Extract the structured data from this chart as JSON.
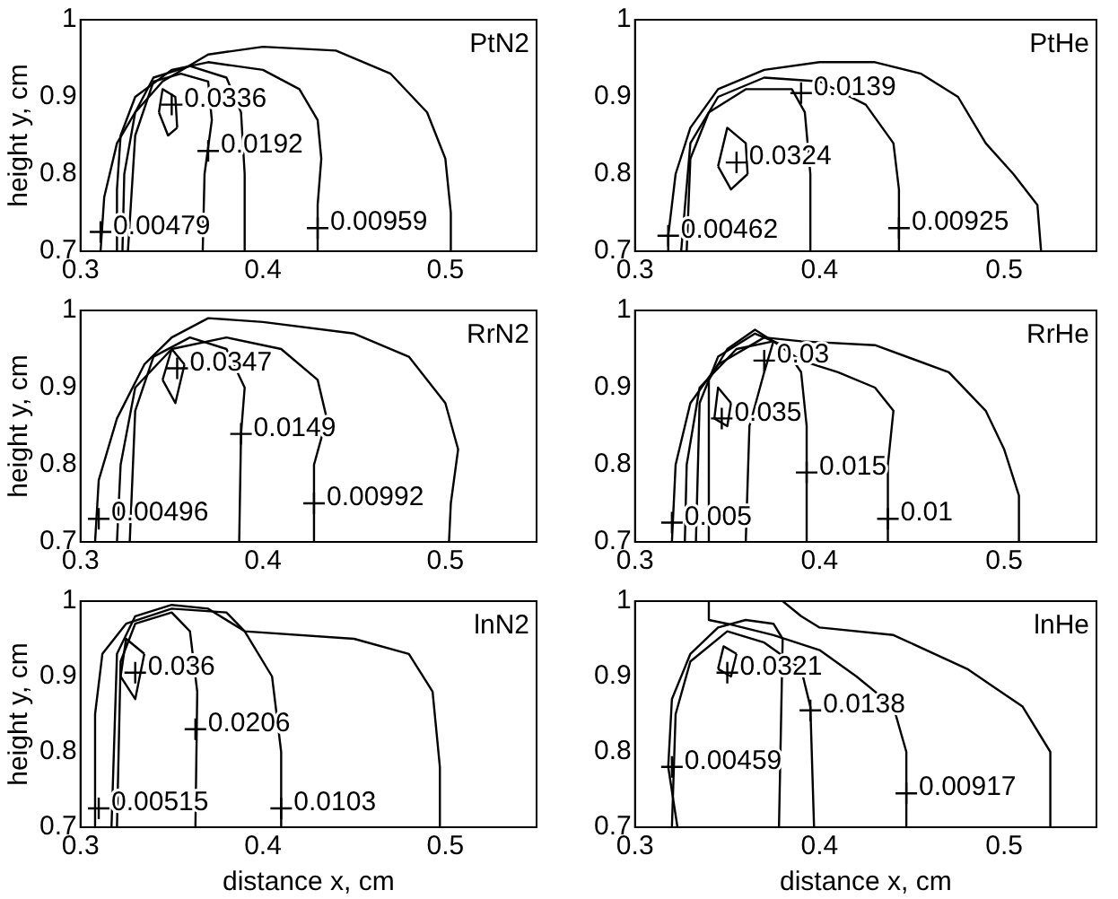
{
  "chart_data": [
    {
      "type": "line",
      "ylabel": "height y, cm",
      "xlim": [
        0.3,
        0.55
      ],
      "ylim": [
        0.7,
        1
      ],
      "xticks": [
        0.3,
        0.4,
        0.5
      ],
      "yticks": [
        0.7,
        0.8,
        0.9,
        1
      ],
      "series": [
        {
          "color": "#000000",
          "x": [
            0.311,
            0.313,
            0.32,
            0.33,
            0.345,
            0.37,
            0.4,
            0.44,
            0.47,
            0.49,
            0.5,
            0.503,
            0.503
          ],
          "values": [
            0.7,
            0.77,
            0.84,
            0.88,
            0.92,
            0.955,
            0.965,
            0.96,
            0.93,
            0.88,
            0.82,
            0.75,
            0.7
          ]
        },
        {
          "color": "#000000",
          "x": [
            0.43,
            0.43,
            0.432,
            0.43,
            0.42,
            0.4,
            0.37,
            0.35,
            0.33,
            0.322,
            0.32,
            0.32
          ],
          "values": [
            0.7,
            0.76,
            0.82,
            0.87,
            0.91,
            0.935,
            0.945,
            0.935,
            0.9,
            0.85,
            0.78,
            0.7
          ]
        },
        {
          "color": "#000000",
          "x": [
            0.39,
            0.39,
            0.388,
            0.38,
            0.36,
            0.34,
            0.33,
            0.324,
            0.323
          ],
          "values": [
            0.7,
            0.8,
            0.88,
            0.925,
            0.94,
            0.925,
            0.88,
            0.8,
            0.7
          ]
        },
        {
          "color": "#000000",
          "x": [
            0.367,
            0.368,
            0.372,
            0.37,
            0.355,
            0.34,
            0.33,
            0.326
          ],
          "values": [
            0.7,
            0.8,
            0.87,
            0.92,
            0.93,
            0.92,
            0.85,
            0.7
          ]
        },
        {
          "color": "#000000",
          "x": [
            0.343,
            0.345,
            0.352,
            0.353
          ],
          "values": [
            0.88,
            0.91,
            0.9,
            0.86
          ]
        },
        {
          "color": "#000000",
          "x": [
            0.343,
            0.348,
            0.353
          ],
          "values": [
            0.88,
            0.85,
            0.86
          ]
        },
        {
          "type": "scatter",
          "marker": "cross",
          "color": "#000000",
          "x": [
            0.35,
            0.37,
            0.311,
            0.43
          ],
          "values": [
            0.89,
            0.83,
            0.725,
            0.73
          ]
        }
      ],
      "annotations": [
        "PtN2",
        {
          "text": "0.0336",
          "x": 0.35,
          "y": 0.89
        },
        {
          "text": "0.0192",
          "x": 0.37,
          "y": 0.83
        },
        {
          "text": "0.00479",
          "x": 0.311,
          "y": 0.725
        },
        {
          "text": "0.00959",
          "x": 0.43,
          "y": 0.73
        }
      ]
    },
    {
      "type": "line",
      "xlim": [
        0.3,
        0.55
      ],
      "ylim": [
        0.7,
        1
      ],
      "xticks": [
        0.3,
        0.4,
        0.5
      ],
      "yticks": [
        0.7,
        0.8,
        0.9,
        1
      ],
      "series": [
        {
          "color": "#000000",
          "x": [
            0.52,
            0.518,
            0.505,
            0.49,
            0.475,
            0.455,
            0.43,
            0.4,
            0.37,
            0.345,
            0.33,
            0.322,
            0.318,
            0.318
          ],
          "values": [
            0.7,
            0.76,
            0.8,
            0.84,
            0.9,
            0.93,
            0.945,
            0.945,
            0.935,
            0.91,
            0.86,
            0.8,
            0.72,
            0.7
          ]
        },
        {
          "color": "#000000",
          "x": [
            0.443,
            0.443,
            0.44,
            0.425,
            0.4,
            0.37,
            0.345,
            0.33,
            0.325
          ],
          "values": [
            0.7,
            0.78,
            0.84,
            0.89,
            0.92,
            0.925,
            0.9,
            0.84,
            0.7
          ]
        },
        {
          "color": "#000000",
          "x": [
            0.395,
            0.395,
            0.392,
            0.385,
            0.36,
            0.34,
            0.33,
            0.328
          ],
          "values": [
            0.7,
            0.8,
            0.88,
            0.91,
            0.91,
            0.88,
            0.82,
            0.7
          ]
        },
        {
          "color": "#000000",
          "x": [
            0.345,
            0.35,
            0.36,
            0.361
          ],
          "values": [
            0.81,
            0.86,
            0.84,
            0.8
          ]
        },
        {
          "color": "#000000",
          "x": [
            0.345,
            0.352,
            0.361
          ],
          "values": [
            0.81,
            0.78,
            0.8
          ]
        },
        {
          "type": "scatter",
          "marker": "cross",
          "color": "#000000",
          "x": [
            0.39,
            0.355,
            0.318,
            0.443
          ],
          "values": [
            0.905,
            0.815,
            0.72,
            0.73
          ]
        }
      ],
      "annotations": [
        "PtHe",
        {
          "text": "0.0139",
          "x": 0.39,
          "y": 0.905
        },
        {
          "text": "0.0324",
          "x": 0.355,
          "y": 0.815
        },
        {
          "text": "0.00462",
          "x": 0.318,
          "y": 0.72
        },
        {
          "text": "0.00925",
          "x": 0.443,
          "y": 0.73
        }
      ]
    },
    {
      "type": "line",
      "ylabel": "height y, cm",
      "xlim": [
        0.3,
        0.55
      ],
      "ylim": [
        0.7,
        1
      ],
      "xticks": [
        0.3,
        0.4,
        0.5
      ],
      "yticks": [
        0.7,
        0.8,
        0.9,
        1
      ],
      "series": [
        {
          "color": "#000000",
          "x": [
            0.308,
            0.31,
            0.32,
            0.335,
            0.35,
            0.37,
            0.4,
            0.45,
            0.48,
            0.5,
            0.507,
            0.503,
            0.502
          ],
          "values": [
            0.7,
            0.78,
            0.86,
            0.93,
            0.965,
            0.99,
            0.985,
            0.97,
            0.94,
            0.88,
            0.82,
            0.75,
            0.7
          ]
        },
        {
          "color": "#000000",
          "x": [
            0.428,
            0.428,
            0.435,
            0.43,
            0.41,
            0.38,
            0.35,
            0.33,
            0.322,
            0.32
          ],
          "values": [
            0.7,
            0.8,
            0.86,
            0.91,
            0.95,
            0.965,
            0.95,
            0.9,
            0.8,
            0.7
          ]
        },
        {
          "color": "#000000",
          "x": [
            0.387,
            0.388,
            0.39,
            0.38,
            0.36,
            0.34,
            0.33,
            0.327
          ],
          "values": [
            0.7,
            0.84,
            0.9,
            0.95,
            0.965,
            0.94,
            0.87,
            0.7
          ]
        },
        {
          "color": "#000000",
          "x": [
            0.345,
            0.35,
            0.357
          ],
          "values": [
            0.91,
            0.95,
            0.93
          ]
        },
        {
          "color": "#000000",
          "x": [
            0.345,
            0.352,
            0.357
          ],
          "values": [
            0.91,
            0.88,
            0.93
          ]
        },
        {
          "type": "scatter",
          "marker": "cross",
          "color": "#000000",
          "x": [
            0.353,
            0.388,
            0.31,
            0.428
          ],
          "values": [
            0.925,
            0.84,
            0.73,
            0.75
          ]
        }
      ],
      "annotations": [
        "RrN2",
        {
          "text": "0.0347",
          "x": 0.353,
          "y": 0.925
        },
        {
          "text": "0.0149",
          "x": 0.388,
          "y": 0.84
        },
        {
          "text": "0.00496",
          "x": 0.31,
          "y": 0.73
        },
        {
          "text": "0.00992",
          "x": 0.428,
          "y": 0.75
        }
      ]
    },
    {
      "type": "line",
      "xlim": [
        0.3,
        0.55
      ],
      "ylim": [
        0.7,
        1
      ],
      "xticks": [
        0.3,
        0.4,
        0.5
      ],
      "yticks": [
        0.7,
        0.8,
        0.9,
        1
      ],
      "series": [
        {
          "color": "#000000",
          "x": [
            0.32,
            0.322,
            0.33,
            0.345,
            0.37,
            0.39,
            0.43,
            0.47,
            0.49,
            0.5,
            0.508,
            0.508
          ],
          "values": [
            0.7,
            0.8,
            0.88,
            0.93,
            0.965,
            0.96,
            0.955,
            0.92,
            0.87,
            0.82,
            0.76,
            0.7
          ]
        },
        {
          "color": "#000000",
          "x": [
            0.437,
            0.437,
            0.44,
            0.43,
            0.41,
            0.39,
            0.375,
            0.355,
            0.335,
            0.328,
            0.327
          ],
          "values": [
            0.7,
            0.8,
            0.87,
            0.9,
            0.92,
            0.935,
            0.96,
            0.95,
            0.9,
            0.8,
            0.7
          ]
        },
        {
          "color": "#000000",
          "x": [
            0.393,
            0.393,
            0.39,
            0.38,
            0.365,
            0.345,
            0.335,
            0.333
          ],
          "values": [
            0.7,
            0.85,
            0.92,
            0.955,
            0.97,
            0.94,
            0.88,
            0.7
          ]
        },
        {
          "color": "#000000",
          "x": [
            0.36,
            0.362,
            0.37,
            0.375,
            0.365,
            0.35,
            0.34,
            0.34
          ],
          "values": [
            0.7,
            0.85,
            0.92,
            0.96,
            0.975,
            0.95,
            0.91,
            0.7
          ]
        },
        {
          "color": "#000000",
          "x": [
            0.343,
            0.345,
            0.352
          ],
          "values": [
            0.86,
            0.9,
            0.88
          ]
        },
        {
          "color": "#000000",
          "x": [
            0.343,
            0.35,
            0.352
          ],
          "values": [
            0.86,
            0.85,
            0.88
          ]
        },
        {
          "type": "scatter",
          "marker": "cross",
          "color": "#000000",
          "x": [
            0.37,
            0.347,
            0.393,
            0.32,
            0.437
          ],
          "values": [
            0.935,
            0.86,
            0.79,
            0.725,
            0.73
          ]
        }
      ],
      "annotations": [
        "RrHe",
        {
          "text": "0.03",
          "x": 0.37,
          "y": 0.935
        },
        {
          "text": "0.035",
          "x": 0.347,
          "y": 0.86
        },
        {
          "text": "0.015",
          "x": 0.393,
          "y": 0.79
        },
        {
          "text": "0.005",
          "x": 0.32,
          "y": 0.725
        },
        {
          "text": "0.01",
          "x": 0.437,
          "y": 0.73
        }
      ]
    },
    {
      "type": "line",
      "xlabel": "distance x, cm",
      "ylabel": "height y, cm",
      "xlim": [
        0.3,
        0.55
      ],
      "ylim": [
        0.7,
        1
      ],
      "xticks": [
        0.3,
        0.4,
        0.5
      ],
      "yticks": [
        0.7,
        0.8,
        0.9,
        1
      ],
      "series": [
        {
          "color": "#000000",
          "x": [
            0.308,
            0.308,
            0.312,
            0.325,
            0.35,
            0.38,
            0.39,
            0.45,
            0.48,
            0.493,
            0.497,
            0.497
          ],
          "values": [
            0.7,
            0.85,
            0.93,
            0.97,
            0.99,
            0.985,
            0.96,
            0.95,
            0.93,
            0.88,
            0.78,
            0.7
          ]
        },
        {
          "color": "#000000",
          "x": [
            0.41,
            0.41,
            0.405,
            0.39,
            0.37,
            0.35,
            0.33,
            0.32,
            0.317
          ],
          "values": [
            0.7,
            0.8,
            0.9,
            0.96,
            0.99,
            0.995,
            0.98,
            0.93,
            0.7
          ]
        },
        {
          "color": "#000000",
          "x": [
            0.363,
            0.364,
            0.36,
            0.35,
            0.33,
            0.322,
            0.32
          ],
          "values": [
            0.7,
            0.88,
            0.96,
            0.985,
            0.97,
            0.92,
            0.7
          ]
        },
        {
          "color": "#000000",
          "x": [
            0.322,
            0.325,
            0.335
          ],
          "values": [
            0.9,
            0.95,
            0.93
          ]
        },
        {
          "color": "#000000",
          "x": [
            0.322,
            0.33,
            0.335
          ],
          "values": [
            0.9,
            0.87,
            0.93
          ]
        },
        {
          "type": "scatter",
          "marker": "cross",
          "color": "#000000",
          "x": [
            0.33,
            0.363,
            0.31,
            0.41
          ],
          "values": [
            0.905,
            0.83,
            0.725,
            0.725
          ]
        }
      ],
      "annotations": [
        "lnN2",
        {
          "text": "0.036",
          "x": 0.33,
          "y": 0.905
        },
        {
          "text": "0.0206",
          "x": 0.363,
          "y": 0.83
        },
        {
          "text": "0.00515",
          "x": 0.31,
          "y": 0.725
        },
        {
          "text": "0.0103",
          "x": 0.41,
          "y": 0.725
        }
      ]
    },
    {
      "type": "line",
      "xlabel": "distance x, cm",
      "xlim": [
        0.3,
        0.55
      ],
      "ylim": [
        0.7,
        1
      ],
      "xticks": [
        0.3,
        0.4,
        0.5
      ],
      "yticks": [
        0.7,
        0.8,
        0.9,
        1
      ],
      "series": [
        {
          "color": "#000000",
          "x": [
            0.525,
            0.525,
            0.51,
            0.48,
            0.44,
            0.4,
            0.39,
            0.38
          ],
          "values": [
            0.7,
            0.8,
            0.86,
            0.91,
            0.955,
            0.965,
            0.98,
            1.0
          ]
        },
        {
          "color": "#000000",
          "x": [
            0.447,
            0.447,
            0.44,
            0.42,
            0.4,
            0.375,
            0.35,
            0.34,
            0.34
          ],
          "values": [
            0.7,
            0.8,
            0.86,
            0.9,
            0.935,
            0.955,
            0.97,
            0.975,
            1.0
          ]
        },
        {
          "color": "#000000",
          "x": [
            0.397,
            0.395,
            0.39,
            0.37,
            0.35,
            0.33,
            0.322,
            0.32
          ],
          "values": [
            0.7,
            0.86,
            0.91,
            0.945,
            0.96,
            0.92,
            0.85,
            0.7
          ]
        },
        {
          "color": "#000000",
          "x": [
            0.323,
            0.318,
            0.32,
            0.33,
            0.345,
            0.36,
            0.375,
            0.38,
            0.378
          ],
          "values": [
            0.7,
            0.78,
            0.87,
            0.93,
            0.965,
            0.975,
            0.97,
            0.95,
            0.7
          ]
        },
        {
          "color": "#000000",
          "x": [
            0.345,
            0.348,
            0.355
          ],
          "values": [
            0.91,
            0.94,
            0.93
          ]
        },
        {
          "color": "#000000",
          "x": [
            0.345,
            0.352,
            0.355
          ],
          "values": [
            0.91,
            0.9,
            0.93
          ]
        },
        {
          "type": "scatter",
          "marker": "cross",
          "color": "#000000",
          "x": [
            0.35,
            0.395,
            0.32,
            0.447
          ],
          "values": [
            0.905,
            0.855,
            0.78,
            0.745
          ]
        }
      ],
      "annotations": [
        "lnHe",
        {
          "text": "0.0321",
          "x": 0.35,
          "y": 0.905
        },
        {
          "text": "0.0138",
          "x": 0.395,
          "y": 0.855
        },
        {
          "text": "0.00459",
          "x": 0.32,
          "y": 0.78
        },
        {
          "text": "0.00917",
          "x": 0.447,
          "y": 0.745
        }
      ]
    }
  ]
}
